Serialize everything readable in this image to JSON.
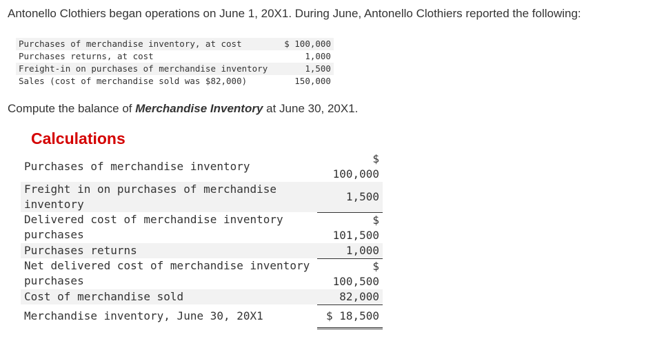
{
  "intro": "Antonello Clothiers began operations on June 1, 20X1. During June, Antonello Clothiers reported the following:",
  "given": [
    {
      "label": "Purchases of merchandise inventory, at cost",
      "amount": "$ 100,000"
    },
    {
      "label": "Purchases returns, at cost",
      "amount": "1,000"
    },
    {
      "label": "Freight-in on purchases of merchandise inventory",
      "amount": "1,500"
    },
    {
      "label": "Sales (cost of merchandise sold was $82,000)",
      "amount": "150,000"
    }
  ],
  "question": {
    "before": "Compute the balance of ",
    "emphasis": "Merchandise Inventory",
    "after": " at June 30, 20X1."
  },
  "calc_title": "Calculations",
  "calc": [
    {
      "desc": "Purchases of merchandise inventory",
      "currency": "$",
      "value": "100,000"
    },
    {
      "desc": "Freight in on purchases of merchandise inventory",
      "currency": "",
      "value": "1,500"
    },
    {
      "desc": "Delivered cost of merchandise inventory purchases",
      "currency": "$",
      "value": "101,500"
    },
    {
      "desc": "Purchases returns",
      "currency": "",
      "value": "1,000"
    },
    {
      "desc": "Net delivered cost of merchandise inventory purchases",
      "currency": "$",
      "value": "100,500"
    },
    {
      "desc": "Cost of merchandise sold",
      "currency": "",
      "value": "82,000"
    },
    {
      "desc": "Merchandise inventory, June 30, 20X1",
      "currency": "",
      "value": "$ 18,500"
    }
  ]
}
